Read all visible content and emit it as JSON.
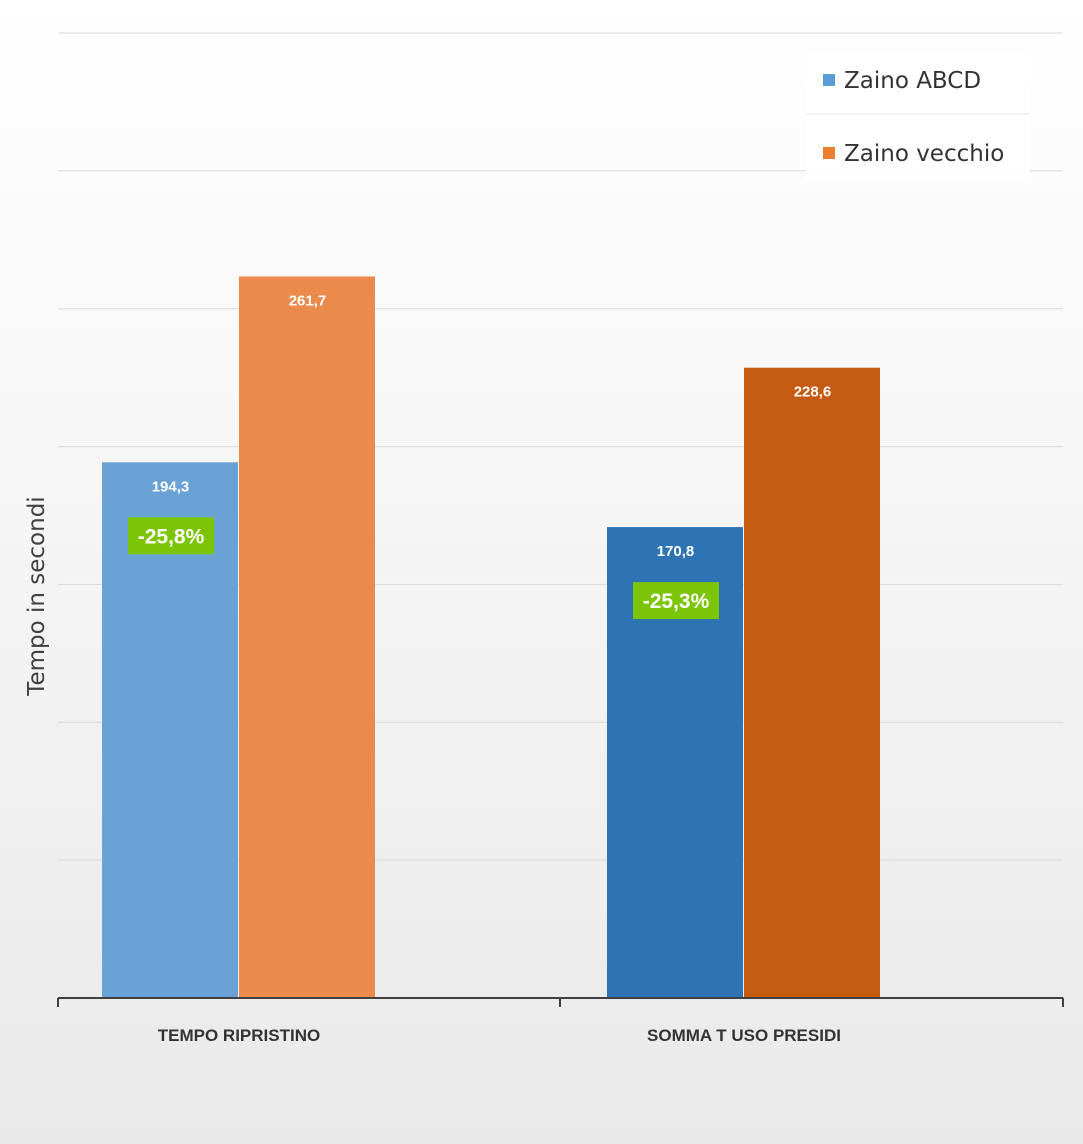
{
  "chart_data": {
    "type": "bar",
    "title": "",
    "xlabel": "",
    "ylabel": "Tempo in secondi",
    "ylim": [
      0,
      350
    ],
    "grid": true,
    "legend_position": "top-right",
    "categories": [
      "TEMPO RIPRISTINO",
      "SOMMA T USO PRESIDI"
    ],
    "series": [
      {
        "name": "Zaino ABCD",
        "values": [
          194.3,
          170.8
        ],
        "value_labels": [
          "194,3",
          "170,8"
        ]
      },
      {
        "name": "Zaino vecchio",
        "values": [
          261.7,
          228.6
        ],
        "value_labels": [
          "261,7",
          "228,6"
        ]
      }
    ],
    "bar_colors": [
      [
        "#6aa2d6",
        "#ea8a4c"
      ],
      [
        "#2e74b5",
        "#c55a11"
      ]
    ],
    "legend_colors": [
      "#5b9bd5",
      "#ed7d31"
    ],
    "annotations": [
      {
        "category": "TEMPO RIPRISTINO",
        "text": "-25,8%"
      },
      {
        "category": "SOMMA T USO PRESIDI",
        "text": "-25,3%"
      }
    ],
    "annotation_color": "#7cc406"
  }
}
